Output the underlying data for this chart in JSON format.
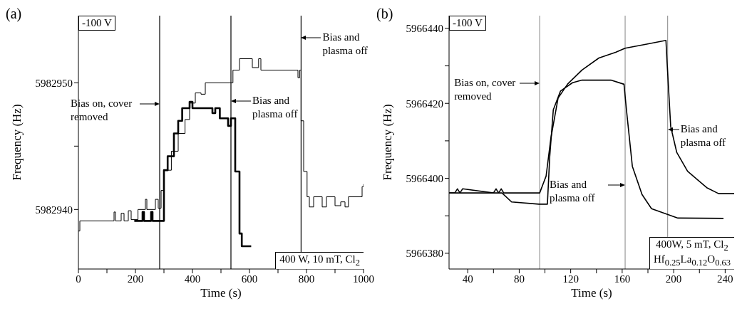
{
  "chart_data": [
    {
      "type": "step",
      "title": "(a)",
      "xlabel": "Time (s)",
      "ylabel": "Frequency (Hz)",
      "xlim": [
        0,
        1000
      ],
      "ylim": [
        5982935.3,
        5982955.3
      ],
      "xticks": [
        0,
        {
          "value": 100,
          "label": null
        },
        200,
        {
          "value": 300,
          "label": null
        },
        400,
        {
          "value": 500,
          "label": null
        },
        600,
        {
          "value": 700,
          "label": null
        },
        800,
        {
          "value": 900,
          "label": null
        },
        1000
      ],
      "yticks": [
        5982940,
        {
          "value": 5982945,
          "label": null
        },
        5982950
      ],
      "series": [
        {
          "color": "#000000",
          "x": [
            0,
            5,
            120,
            125,
            130,
            150,
            160,
            175,
            185,
            209,
            230,
            235,
            240,
            265,
            270,
            280,
            290,
            300,
            326,
            350,
            374,
            390,
            410,
            430,
            445,
            530,
            542,
            565,
            600,
            610,
            632,
            640,
            760,
            770,
            776,
            781,
            790,
            802,
            810,
            825,
            850,
            855,
            870,
            900,
            920,
            935,
            947,
            990,
            995,
            1000
          ],
          "values": [
            5982938.3,
            5982939.1,
            5982939.1,
            5982939.8,
            5982939.1,
            5982939.7,
            5982939.1,
            5982939.9,
            5982939.2,
            5982940.0,
            5982940.0,
            5982940.8,
            5982940.0,
            5982940.0,
            5982940.8,
            5982940.1,
            5982941.5,
            5982943.1,
            5982944.6,
            5982946.0,
            5982947.1,
            5982948.4,
            5982949.2,
            5982949.1,
            5982950.0,
            5982950.0,
            5982951.0,
            5982951.9,
            5982951.9,
            5982951.2,
            5982951.9,
            5982951.0,
            5982951.0,
            5982950.4,
            5982951.0,
            5982947.0,
            5982943.0,
            5982941.0,
            5982940.2,
            5982941.0,
            5982941.0,
            5982940.2,
            5982941.0,
            5982940.3,
            5982940.6,
            5982940.2,
            5982941.0,
            5982941.0,
            5982941.8,
            5982942.0
          ]
        },
        {
          "color": "#000000",
          "x": [
            196,
            220,
            225,
            230,
            250,
            255,
            260,
            290,
            300,
            313,
            335,
            350,
            364,
            380,
            390,
            400,
            460,
            470,
            480,
            496,
            520,
            525,
            535,
            542,
            550,
            565,
            573,
            606
          ],
          "values": [
            5982939.1,
            5982939.1,
            5982939.8,
            5982939.1,
            5982939.1,
            5982939.8,
            5982939.1,
            5982939.1,
            5982943.1,
            5982944.2,
            5982946.0,
            5982947.0,
            5982948.0,
            5982948.0,
            5982948.5,
            5982948.0,
            5982948.0,
            5982947.6,
            5982948.0,
            5982947.2,
            5982947.2,
            5982946.6,
            5982947.2,
            5982947.2,
            5982943.0,
            5982938.1,
            5982937.1,
            5982937.1
          ]
        }
      ],
      "ref_lines": [
        {
          "axis": "x",
          "value": 285,
          "label": "Bias on, cover removed",
          "color": "#000000"
        },
        {
          "axis": "x",
          "value": 535,
          "label": "Bias and plasma off",
          "color": "#000000"
        },
        {
          "axis": "x",
          "value": 781,
          "label": "Bias and plasma off",
          "color": "#000000"
        }
      ],
      "annotations": [
        "-100 V",
        "400 W, 10 mT, Cl$_{2}$"
      ]
    },
    {
      "type": "line",
      "title": "(b)",
      "xlabel": "Time (s)",
      "ylabel": "Frequency (Hz)",
      "xlim": [
        25.5,
        247
      ],
      "ylim": [
        5966375.8,
        5966443.4
      ],
      "xticks": [
        40,
        {
          "value": 60,
          "label": null
        },
        80,
        {
          "value": 100,
          "label": null
        },
        120,
        {
          "value": 140,
          "label": null
        },
        160,
        {
          "value": 180,
          "label": null
        },
        200,
        {
          "value": 220,
          "label": null
        },
        240
      ],
      "yticks": [
        5966380,
        {
          "value": 5966390,
          "label": null
        },
        5966400,
        {
          "value": 5966410,
          "label": null
        },
        5966420,
        {
          "value": 5966430,
          "label": null
        },
        5966440
      ],
      "series": [
        {
          "color": "#000000",
          "x": [
            25.5,
            30,
            32,
            34,
            36,
            60,
            62,
            64,
            66,
            68,
            90,
            95.9,
            100.9,
            104.6,
            110.2,
            117.7,
            128.8,
            141.9,
            154.9,
            162.3,
            179.1,
            194.0,
            194.9,
            197.7,
            202.4,
            210.8,
            225.7,
            235.0,
            247
          ],
          "values": [
            5966396.1,
            5966396.1,
            5966397.2,
            5966396.1,
            5966397.2,
            5966396.1,
            5966397.2,
            5966396.1,
            5966397.2,
            5966396.1,
            5966396.1,
            5966396.1,
            5966400.6,
            5966410.7,
            5966421.4,
            5966425.2,
            5966428.9,
            5966432.1,
            5966433.6,
            5966434.7,
            5966435.8,
            5966436.8,
            5966430.8,
            5966413.8,
            5966406.9,
            5966401.9,
            5966397.5,
            5966395.9,
            5966395.9
          ]
        },
        {
          "color": "#000000",
          "x": [
            25.5,
            66.6,
            74.1,
            95.3,
            101.9,
            103.7,
            106.5,
            112.1,
            121.4,
            128.8,
            151.2,
            161.4,
            163.3,
            167.9,
            175.4,
            182.8,
            203.3,
            238.7
          ],
          "values": [
            5966396.1,
            5966396.1,
            5966393.7,
            5966393.1,
            5966393.1,
            5966405.7,
            5966418.3,
            5966423.3,
            5966425.5,
            5966426.2,
            5966426.2,
            5966425.1,
            5966418.3,
            5966403.2,
            5966395.7,
            5966391.9,
            5966389.4,
            5966389.3
          ]
        }
      ],
      "ref_lines": [
        {
          "axis": "x",
          "value": 95.9,
          "label": "Bias on, cover removed",
          "color": "#999999"
        },
        {
          "axis": "x",
          "value": 162.3,
          "label": "Bias and plasma off",
          "color": "#999999"
        },
        {
          "axis": "x",
          "value": 195.3,
          "label": "Bias and plasma off",
          "color": "#999999"
        }
      ],
      "annotations": [
        "-100 V",
        "400W, 5 mT, Cl$_{2}$",
        "Hf$_{0.25}$La$_{0.12}$O$_{0.63}$"
      ]
    }
  ]
}
